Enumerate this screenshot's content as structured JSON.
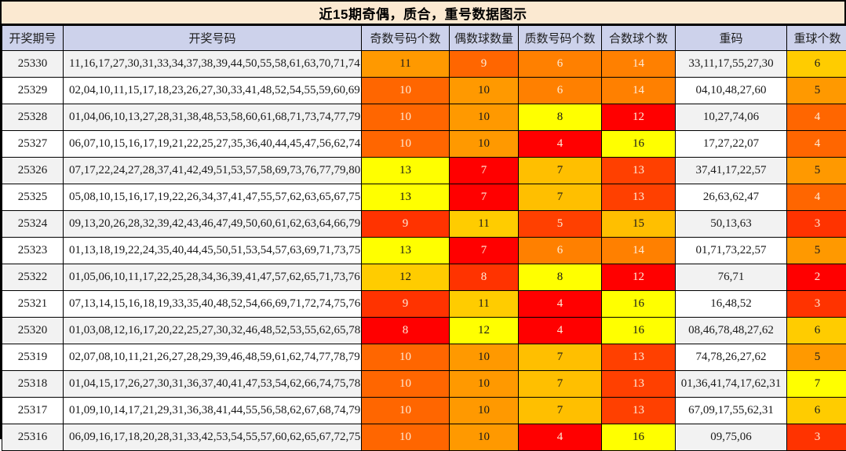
{
  "chart_data": {
    "type": "table",
    "title": "近15期奇偶，质合，重号数据图示",
    "columns": [
      {
        "key": "period",
        "label": "开奖期号"
      },
      {
        "key": "numbers",
        "label": "开奖号码"
      },
      {
        "key": "odd",
        "label": "奇数号码个数"
      },
      {
        "key": "even",
        "label": "偶数球数量"
      },
      {
        "key": "prime",
        "label": "质数号码个数"
      },
      {
        "key": "composite",
        "label": "合数球个数"
      },
      {
        "key": "repeat_numbers",
        "label": "重码"
      },
      {
        "key": "repeat_count",
        "label": "重球个数"
      }
    ],
    "heatmap": {
      "scale": "per-column 2-color scale: column minimum = #FF0000 (red) to column maximum = #FFFF00 (yellow)",
      "column_ranges": {
        "odd": [
          8,
          13
        ],
        "even": [
          7,
          12
        ],
        "prime": [
          4,
          8
        ],
        "composite": [
          12,
          16
        ],
        "repeat_count": [
          2,
          7
        ]
      },
      "light_text_on_dark_cells": "#FDEBD7",
      "dark_text_on_light_cells": "#1A1A1A"
    },
    "rows": [
      {
        "period": "25330",
        "numbers": "11,16,17,27,30,31,33,34,37,38,39,44,50,55,58,61,63,70,71,74",
        "odd": {
          "v": 11,
          "bg": "#FF9900",
          "fg": "#1A1A1A"
        },
        "even": {
          "v": 9,
          "bg": "#FF6600",
          "fg": "#FDEBD7"
        },
        "prime": {
          "v": 6,
          "bg": "#FF8000",
          "fg": "#FDEBD7"
        },
        "composite": {
          "v": 14,
          "bg": "#FF8000",
          "fg": "#FDEBD7"
        },
        "repeat_numbers": "33,11,17,55,27,30",
        "repeat_count": {
          "v": 6,
          "bg": "#FFCC00",
          "fg": "#1A1A1A"
        }
      },
      {
        "period": "25329",
        "numbers": "02,04,10,11,15,17,18,23,26,27,30,33,41,48,52,54,55,59,60,69",
        "odd": {
          "v": 10,
          "bg": "#FF6600",
          "fg": "#FDEBD7"
        },
        "even": {
          "v": 10,
          "bg": "#FF9900",
          "fg": "#1A1A1A"
        },
        "prime": {
          "v": 6,
          "bg": "#FF8000",
          "fg": "#FDEBD7"
        },
        "composite": {
          "v": 14,
          "bg": "#FF8000",
          "fg": "#FDEBD7"
        },
        "repeat_numbers": "04,10,48,27,60",
        "repeat_count": {
          "v": 5,
          "bg": "#FF9900",
          "fg": "#1A1A1A"
        }
      },
      {
        "period": "25328",
        "numbers": "01,04,06,10,13,27,28,31,38,48,53,58,60,61,68,71,73,74,77,79",
        "odd": {
          "v": 10,
          "bg": "#FF6600",
          "fg": "#FDEBD7"
        },
        "even": {
          "v": 10,
          "bg": "#FF9900",
          "fg": "#1A1A1A"
        },
        "prime": {
          "v": 8,
          "bg": "#FFFF00",
          "fg": "#1A1A1A"
        },
        "composite": {
          "v": 12,
          "bg": "#FF0000",
          "fg": "#FDEBD7"
        },
        "repeat_numbers": "10,27,74,06",
        "repeat_count": {
          "v": 4,
          "bg": "#FF6600",
          "fg": "#FDEBD7"
        }
      },
      {
        "period": "25327",
        "numbers": "06,07,10,15,16,17,19,21,22,25,27,35,36,40,44,45,47,56,62,74",
        "odd": {
          "v": 10,
          "bg": "#FF6600",
          "fg": "#FDEBD7"
        },
        "even": {
          "v": 10,
          "bg": "#FF9900",
          "fg": "#1A1A1A"
        },
        "prime": {
          "v": 4,
          "bg": "#FF0000",
          "fg": "#FDEBD7"
        },
        "composite": {
          "v": 16,
          "bg": "#FFFF00",
          "fg": "#1A1A1A"
        },
        "repeat_numbers": "17,27,22,07",
        "repeat_count": {
          "v": 4,
          "bg": "#FF6600",
          "fg": "#FDEBD7"
        }
      },
      {
        "period": "25326",
        "numbers": "07,17,22,24,27,28,37,41,42,49,51,53,57,58,69,73,76,77,79,80",
        "odd": {
          "v": 13,
          "bg": "#FFFF00",
          "fg": "#1A1A1A"
        },
        "even": {
          "v": 7,
          "bg": "#FF0000",
          "fg": "#FDEBD7"
        },
        "prime": {
          "v": 7,
          "bg": "#FFBF00",
          "fg": "#1A1A1A"
        },
        "composite": {
          "v": 13,
          "bg": "#FF4000",
          "fg": "#FDEBD7"
        },
        "repeat_numbers": "37,41,17,22,57",
        "repeat_count": {
          "v": 5,
          "bg": "#FF9900",
          "fg": "#1A1A1A"
        }
      },
      {
        "period": "25325",
        "numbers": "05,08,10,15,16,17,19,22,26,34,37,41,47,55,57,62,63,65,67,75",
        "odd": {
          "v": 13,
          "bg": "#FFFF00",
          "fg": "#1A1A1A"
        },
        "even": {
          "v": 7,
          "bg": "#FF0000",
          "fg": "#FDEBD7"
        },
        "prime": {
          "v": 7,
          "bg": "#FFBF00",
          "fg": "#1A1A1A"
        },
        "composite": {
          "v": 13,
          "bg": "#FF4000",
          "fg": "#FDEBD7"
        },
        "repeat_numbers": "26,63,62,47",
        "repeat_count": {
          "v": 4,
          "bg": "#FF6600",
          "fg": "#FDEBD7"
        }
      },
      {
        "period": "25324",
        "numbers": "09,13,20,26,28,32,39,42,43,46,47,49,50,60,61,62,63,64,66,79",
        "odd": {
          "v": 9,
          "bg": "#FF3300",
          "fg": "#FDEBD7"
        },
        "even": {
          "v": 11,
          "bg": "#FFCC00",
          "fg": "#1A1A1A"
        },
        "prime": {
          "v": 5,
          "bg": "#FF4000",
          "fg": "#FDEBD7"
        },
        "composite": {
          "v": 15,
          "bg": "#FFBF00",
          "fg": "#1A1A1A"
        },
        "repeat_numbers": "50,13,63",
        "repeat_count": {
          "v": 3,
          "bg": "#FF3300",
          "fg": "#FDEBD7"
        }
      },
      {
        "period": "25323",
        "numbers": "01,13,18,19,22,24,35,40,44,45,50,51,53,54,57,63,69,71,73,75",
        "odd": {
          "v": 13,
          "bg": "#FFFF00",
          "fg": "#1A1A1A"
        },
        "even": {
          "v": 7,
          "bg": "#FF0000",
          "fg": "#FDEBD7"
        },
        "prime": {
          "v": 6,
          "bg": "#FF8000",
          "fg": "#FDEBD7"
        },
        "composite": {
          "v": 14,
          "bg": "#FF8000",
          "fg": "#FDEBD7"
        },
        "repeat_numbers": "01,71,73,22,57",
        "repeat_count": {
          "v": 5,
          "bg": "#FF9900",
          "fg": "#1A1A1A"
        }
      },
      {
        "period": "25322",
        "numbers": "01,05,06,10,11,17,22,25,28,34,36,39,41,47,57,62,65,71,73,76",
        "odd": {
          "v": 12,
          "bg": "#FFCC00",
          "fg": "#1A1A1A"
        },
        "even": {
          "v": 8,
          "bg": "#FF3300",
          "fg": "#FDEBD7"
        },
        "prime": {
          "v": 8,
          "bg": "#FFFF00",
          "fg": "#1A1A1A"
        },
        "composite": {
          "v": 12,
          "bg": "#FF0000",
          "fg": "#FDEBD7"
        },
        "repeat_numbers": "76,71",
        "repeat_count": {
          "v": 2,
          "bg": "#FF0000",
          "fg": "#FDEBD7"
        }
      },
      {
        "period": "25321",
        "numbers": "07,13,14,15,16,18,19,33,35,40,48,52,54,66,69,71,72,74,75,76",
        "odd": {
          "v": 9,
          "bg": "#FF3300",
          "fg": "#FDEBD7"
        },
        "even": {
          "v": 11,
          "bg": "#FFCC00",
          "fg": "#1A1A1A"
        },
        "prime": {
          "v": 4,
          "bg": "#FF0000",
          "fg": "#FDEBD7"
        },
        "composite": {
          "v": 16,
          "bg": "#FFFF00",
          "fg": "#1A1A1A"
        },
        "repeat_numbers": "16,48,52",
        "repeat_count": {
          "v": 3,
          "bg": "#FF3300",
          "fg": "#FDEBD7"
        }
      },
      {
        "period": "25320",
        "numbers": "01,03,08,12,16,17,20,22,25,27,30,32,46,48,52,53,55,62,65,78",
        "odd": {
          "v": 8,
          "bg": "#FF0000",
          "fg": "#FDEBD7"
        },
        "even": {
          "v": 12,
          "bg": "#FFFF00",
          "fg": "#1A1A1A"
        },
        "prime": {
          "v": 4,
          "bg": "#FF0000",
          "fg": "#FDEBD7"
        },
        "composite": {
          "v": 16,
          "bg": "#FFFF00",
          "fg": "#1A1A1A"
        },
        "repeat_numbers": "08,46,78,48,27,62",
        "repeat_count": {
          "v": 6,
          "bg": "#FFCC00",
          "fg": "#1A1A1A"
        }
      },
      {
        "period": "25319",
        "numbers": "02,07,08,10,11,21,26,27,28,29,39,46,48,59,61,62,74,77,78,79",
        "odd": {
          "v": 10,
          "bg": "#FF6600",
          "fg": "#FDEBD7"
        },
        "even": {
          "v": 10,
          "bg": "#FF9900",
          "fg": "#1A1A1A"
        },
        "prime": {
          "v": 7,
          "bg": "#FFBF00",
          "fg": "#1A1A1A"
        },
        "composite": {
          "v": 13,
          "bg": "#FF4000",
          "fg": "#FDEBD7"
        },
        "repeat_numbers": "74,78,26,27,62",
        "repeat_count": {
          "v": 5,
          "bg": "#FF9900",
          "fg": "#1A1A1A"
        }
      },
      {
        "period": "25318",
        "numbers": "01,04,15,17,26,27,30,31,36,37,40,41,47,53,54,62,66,74,75,78",
        "odd": {
          "v": 10,
          "bg": "#FF6600",
          "fg": "#FDEBD7"
        },
        "even": {
          "v": 10,
          "bg": "#FF9900",
          "fg": "#1A1A1A"
        },
        "prime": {
          "v": 7,
          "bg": "#FFBF00",
          "fg": "#1A1A1A"
        },
        "composite": {
          "v": 13,
          "bg": "#FF4000",
          "fg": "#FDEBD7"
        },
        "repeat_numbers": "01,36,41,74,17,62,31",
        "repeat_count": {
          "v": 7,
          "bg": "#FFFF00",
          "fg": "#1A1A1A"
        }
      },
      {
        "period": "25317",
        "numbers": "01,09,10,14,17,21,29,31,36,38,41,44,55,56,58,62,67,68,74,79",
        "odd": {
          "v": 10,
          "bg": "#FF6600",
          "fg": "#FDEBD7"
        },
        "even": {
          "v": 10,
          "bg": "#FF9900",
          "fg": "#1A1A1A"
        },
        "prime": {
          "v": 7,
          "bg": "#FFBF00",
          "fg": "#1A1A1A"
        },
        "composite": {
          "v": 13,
          "bg": "#FF4000",
          "fg": "#FDEBD7"
        },
        "repeat_numbers": "67,09,17,55,62,31",
        "repeat_count": {
          "v": 6,
          "bg": "#FFCC00",
          "fg": "#1A1A1A"
        }
      },
      {
        "period": "25316",
        "numbers": "06,09,16,17,18,20,28,31,33,42,53,54,55,57,60,62,65,67,72,75",
        "odd": {
          "v": 10,
          "bg": "#FF6600",
          "fg": "#FDEBD7"
        },
        "even": {
          "v": 10,
          "bg": "#FF9900",
          "fg": "#1A1A1A"
        },
        "prime": {
          "v": 4,
          "bg": "#FF0000",
          "fg": "#FDEBD7"
        },
        "composite": {
          "v": 16,
          "bg": "#FFFF00",
          "fg": "#1A1A1A"
        },
        "repeat_numbers": "09,75,06",
        "repeat_count": {
          "v": 3,
          "bg": "#FF3300",
          "fg": "#FDEBD7"
        }
      }
    ],
    "layout_hints": {
      "legend": "none",
      "grid": "on",
      "header_position": "top"
    }
  },
  "colors": {
    "title_bg": "#FBE9D1",
    "header_bg": "#CDD2EB",
    "row_bg": "#FFFFFF",
    "row_alt_bg": "#F2F2F2",
    "grid_line": "#000000",
    "heat_min": "#FF0000",
    "heat_max": "#FFFF00"
  }
}
